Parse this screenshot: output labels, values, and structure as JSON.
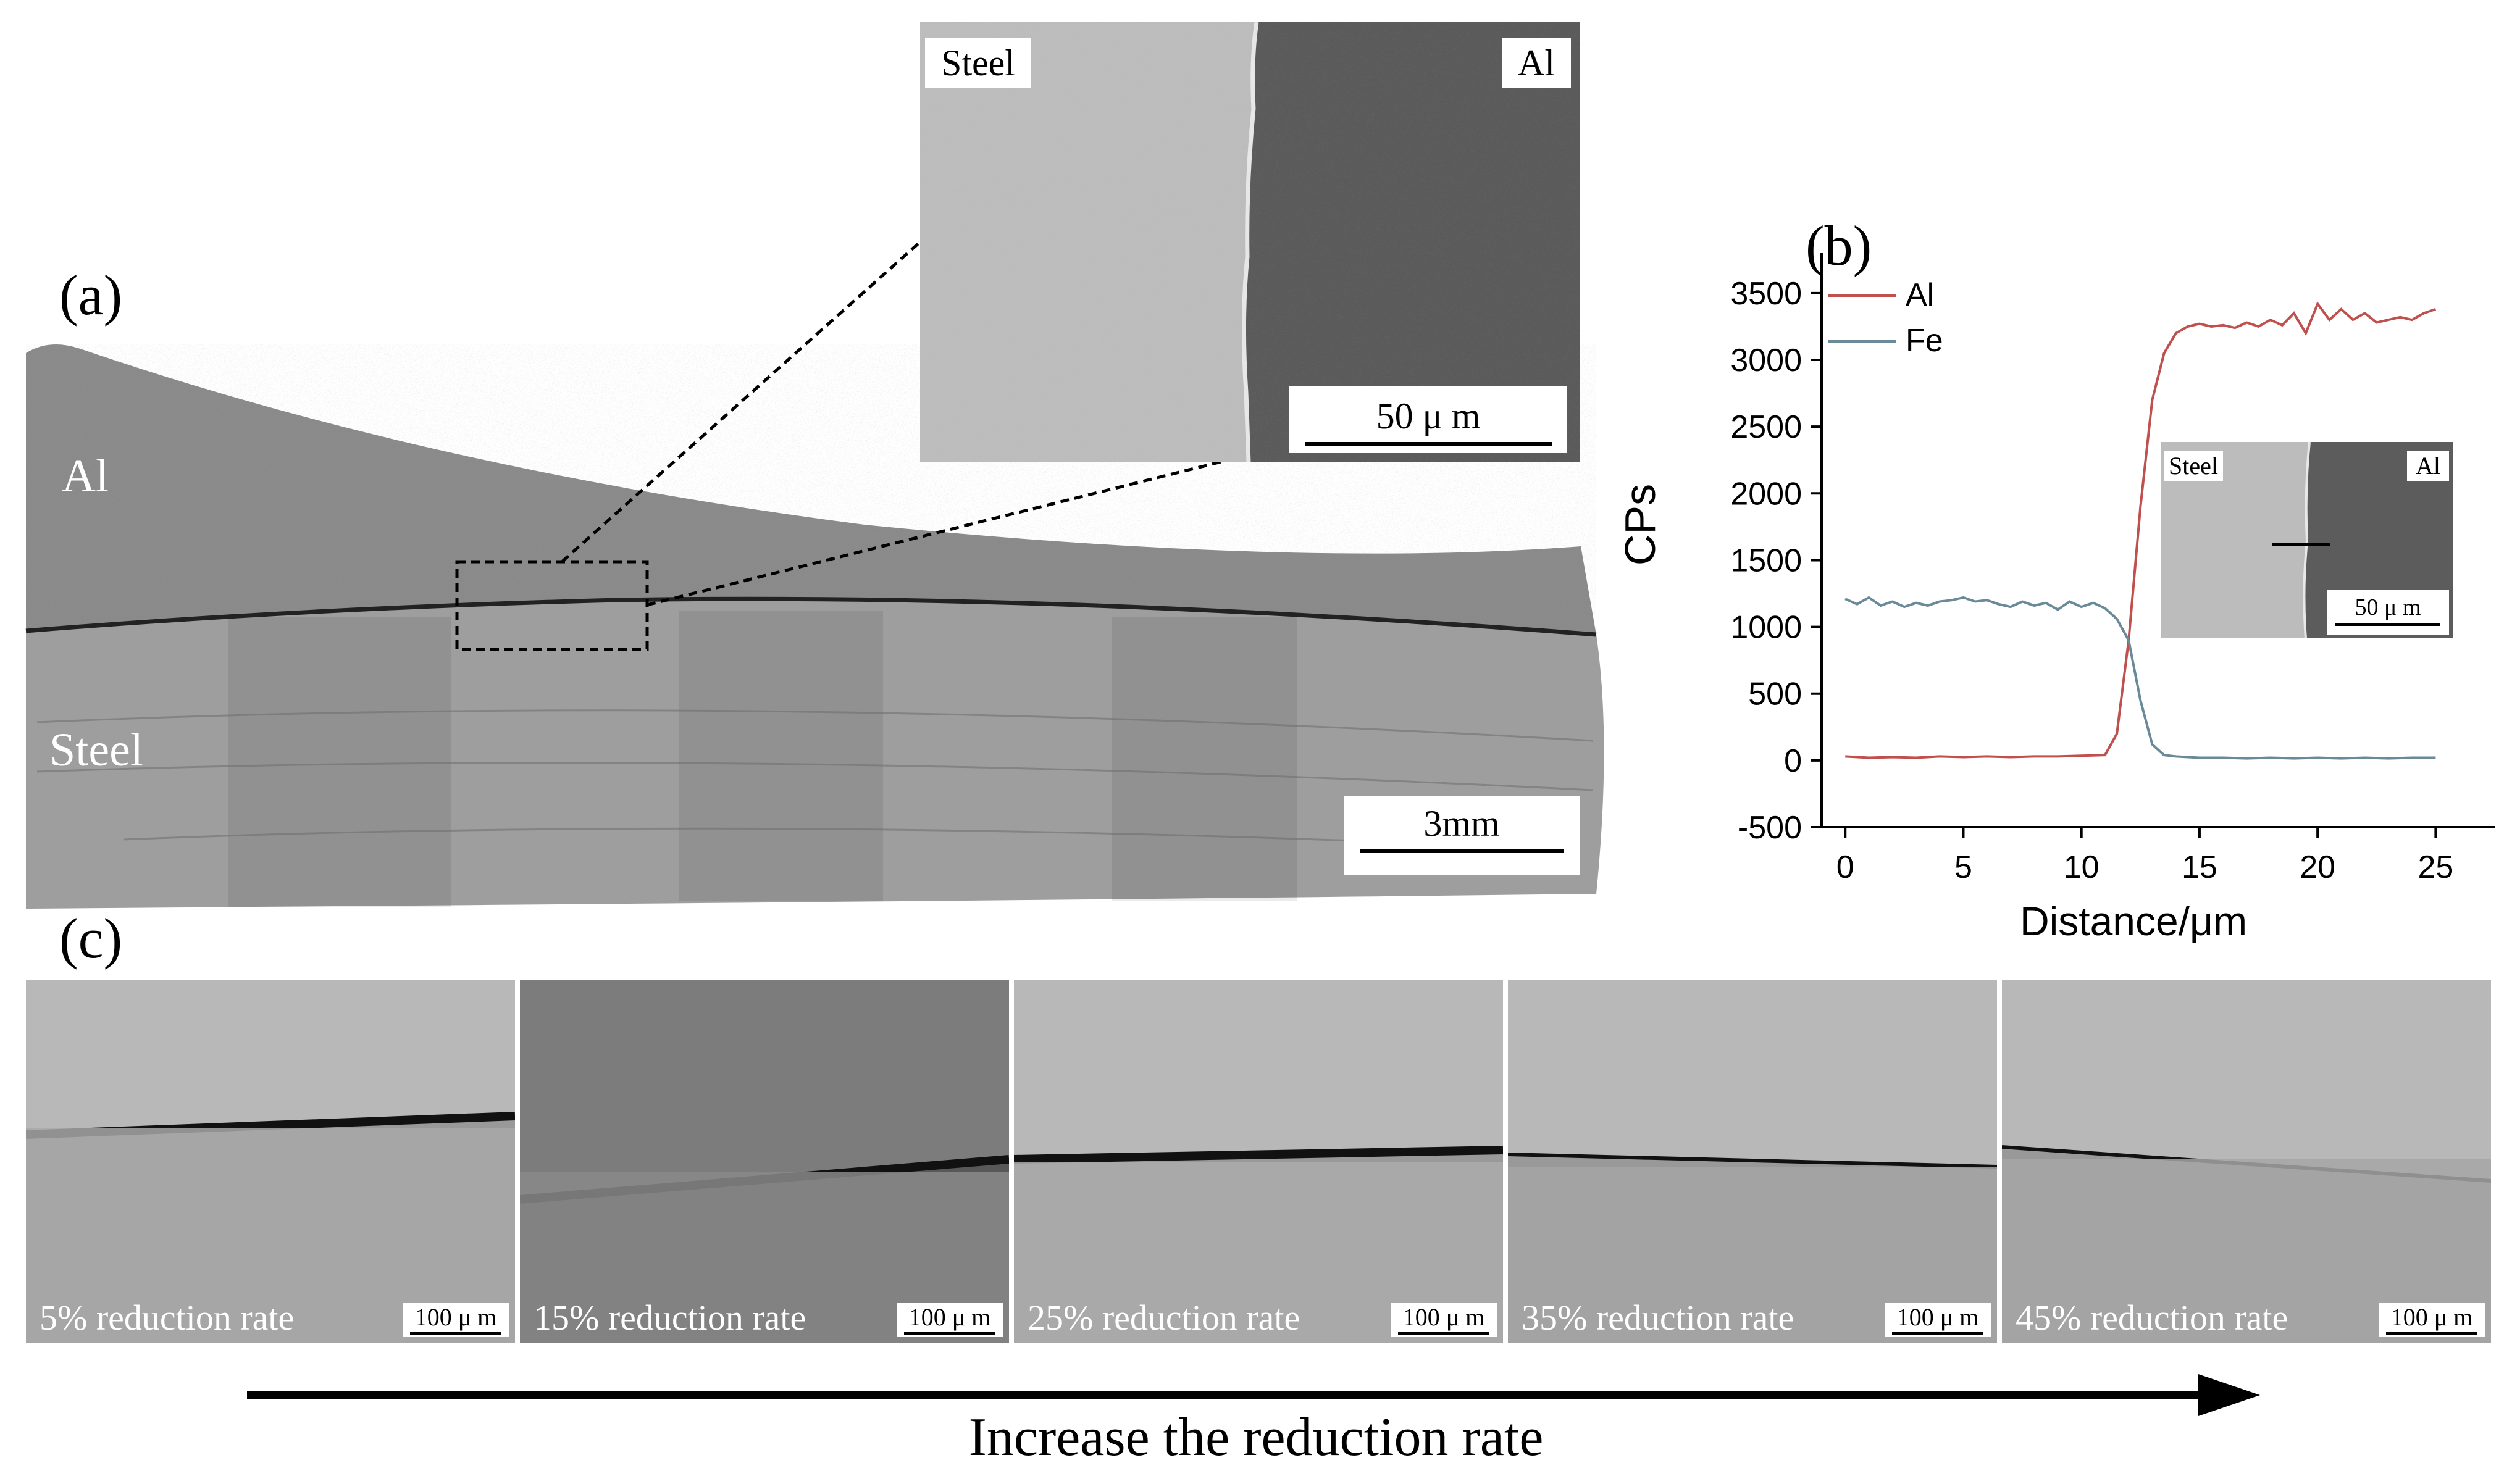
{
  "panel_a": {
    "letter": "(a)",
    "al_label": "Al",
    "steel_label": "Steel",
    "scale": "3mm",
    "inset": {
      "steel_label": "Steel",
      "al_label": "Al",
      "scale": "50 μ m"
    }
  },
  "panel_b": {
    "letter": "(b)",
    "inset": {
      "steel_label": "Steel",
      "al_label": "Al",
      "scale": "50 μ m"
    }
  },
  "panel_c": {
    "letter": "(c)",
    "strips": [
      {
        "caption": "5% reduction rate",
        "scale": "100 μ m",
        "tone": "#a8a8a8"
      },
      {
        "caption": "15% reduction rate",
        "scale": "100 μ m",
        "tone": "#8a8a8a"
      },
      {
        "caption": "25% reduction rate",
        "scale": "100 μ m",
        "tone": "#acacac"
      },
      {
        "caption": "35% reduction rate",
        "scale": "100 μ m",
        "tone": "#a4a4a4"
      },
      {
        "caption": "45% reduction rate",
        "scale": "100 μ m",
        "tone": "#a6a6a6"
      }
    ],
    "arrow_caption": "Increase the reduction rate"
  },
  "chart_data": {
    "type": "line",
    "xlabel": "Distance/μm",
    "ylabel": "CPs",
    "xlim": [
      -1,
      27.5
    ],
    "ylim": [
      -500,
      3800
    ],
    "xticks": [
      0,
      5,
      10,
      15,
      20,
      25
    ],
    "yticks": [
      -500,
      0,
      500,
      1000,
      1500,
      2000,
      2500,
      3000,
      3500
    ],
    "legend_position": "top-left",
    "series": [
      {
        "name": "Al",
        "color": "#c0504d",
        "x": [
          0,
          1,
          2,
          3,
          4,
          5,
          6,
          7,
          8,
          9,
          10,
          11,
          11.5,
          12,
          12.5,
          13,
          13.5,
          14,
          14.5,
          15,
          15.5,
          16,
          16.5,
          17,
          17.5,
          18,
          18.5,
          19,
          19.5,
          20,
          20.5,
          21,
          21.5,
          22,
          22.5,
          23,
          23.5,
          24,
          24.5,
          25
        ],
        "y": [
          30,
          20,
          25,
          20,
          30,
          25,
          30,
          25,
          30,
          30,
          35,
          40,
          200,
          900,
          1900,
          2700,
          3050,
          3200,
          3250,
          3270,
          3250,
          3260,
          3240,
          3280,
          3250,
          3300,
          3260,
          3350,
          3200,
          3420,
          3300,
          3380,
          3300,
          3350,
          3280,
          3300,
          3320,
          3300,
          3350,
          3380
        ]
      },
      {
        "name": "Fe",
        "color": "#6a8a9a",
        "x": [
          0,
          0.5,
          1,
          1.5,
          2,
          2.5,
          3,
          3.5,
          4,
          4.5,
          5,
          5.5,
          6,
          6.5,
          7,
          7.5,
          8,
          8.5,
          9,
          9.5,
          10,
          10.5,
          11,
          11.5,
          12,
          12.5,
          13,
          13.5,
          14,
          15,
          16,
          17,
          18,
          19,
          20,
          21,
          22,
          23,
          24,
          25
        ],
        "y": [
          1210,
          1170,
          1220,
          1160,
          1190,
          1150,
          1180,
          1160,
          1190,
          1200,
          1220,
          1190,
          1200,
          1170,
          1150,
          1190,
          1160,
          1180,
          1130,
          1190,
          1150,
          1180,
          1140,
          1060,
          900,
          450,
          120,
          40,
          30,
          20,
          20,
          15,
          20,
          15,
          20,
          15,
          20,
          15,
          20,
          20
        ]
      }
    ]
  }
}
